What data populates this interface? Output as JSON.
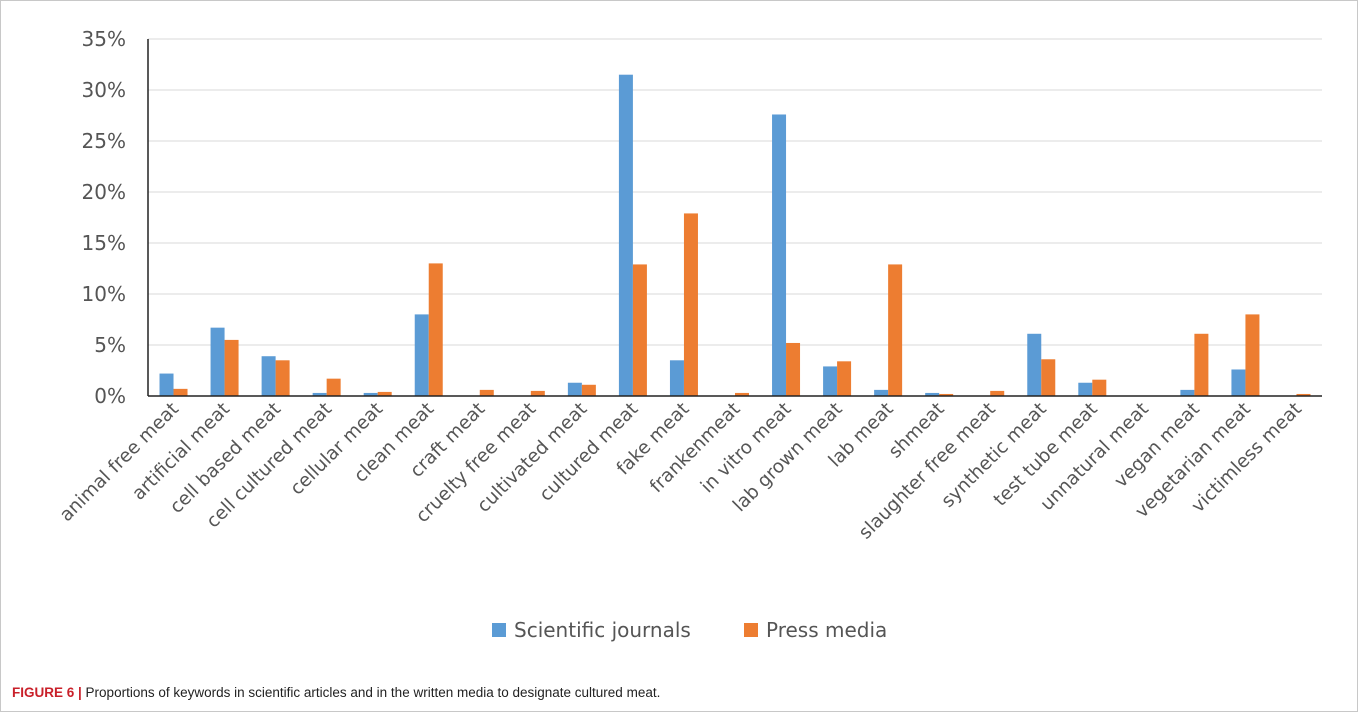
{
  "chart_data": {
    "type": "bar",
    "title": "",
    "xlabel": "",
    "ylabel": "",
    "ylim": [
      0,
      35
    ],
    "y_ticks": [
      "0%",
      "5%",
      "10%",
      "15%",
      "20%",
      "25%",
      "30%",
      "35%"
    ],
    "y_tick_values": [
      0,
      5,
      10,
      15,
      20,
      25,
      30,
      35
    ],
    "grid": true,
    "legend_position": "bottom",
    "categories": [
      "animal free meat",
      "artificial meat",
      "cell based meat",
      "cell cultured meat",
      "cellular meat",
      "clean meat",
      "craft meat",
      "cruelty free meat",
      "cultivated meat",
      "cultured meat",
      "fake meat",
      "frankenmeat",
      "in vitro meat",
      "lab grown meat",
      "lab meat",
      "shmeat",
      "slaughter free meat",
      "synthetic meat",
      "test tube meat",
      "unnatural meat",
      "vegan meat",
      "vegetarian meat",
      "victimless meat"
    ],
    "series": [
      {
        "name": "Scientific journals",
        "color": "#5b9bd5",
        "values": [
          2.2,
          6.7,
          3.9,
          0.3,
          0.3,
          8.0,
          0,
          0,
          1.3,
          31.5,
          3.5,
          0,
          27.6,
          2.9,
          0.6,
          0.3,
          0,
          6.1,
          1.3,
          0,
          0.6,
          2.6,
          0
        ]
      },
      {
        "name": "Press media",
        "color": "#ed7d31",
        "values": [
          0.7,
          5.5,
          3.5,
          1.7,
          0.4,
          13.0,
          0.6,
          0.5,
          1.1,
          12.9,
          17.9,
          0.3,
          5.2,
          3.4,
          12.9,
          0.2,
          0.5,
          3.6,
          1.6,
          0,
          6.1,
          8.0,
          0.2
        ]
      }
    ]
  },
  "caption": {
    "label": "FIGURE 6 |",
    "text": " Proportions of keywords in scientific articles and in the written media to designate cultured meat."
  }
}
